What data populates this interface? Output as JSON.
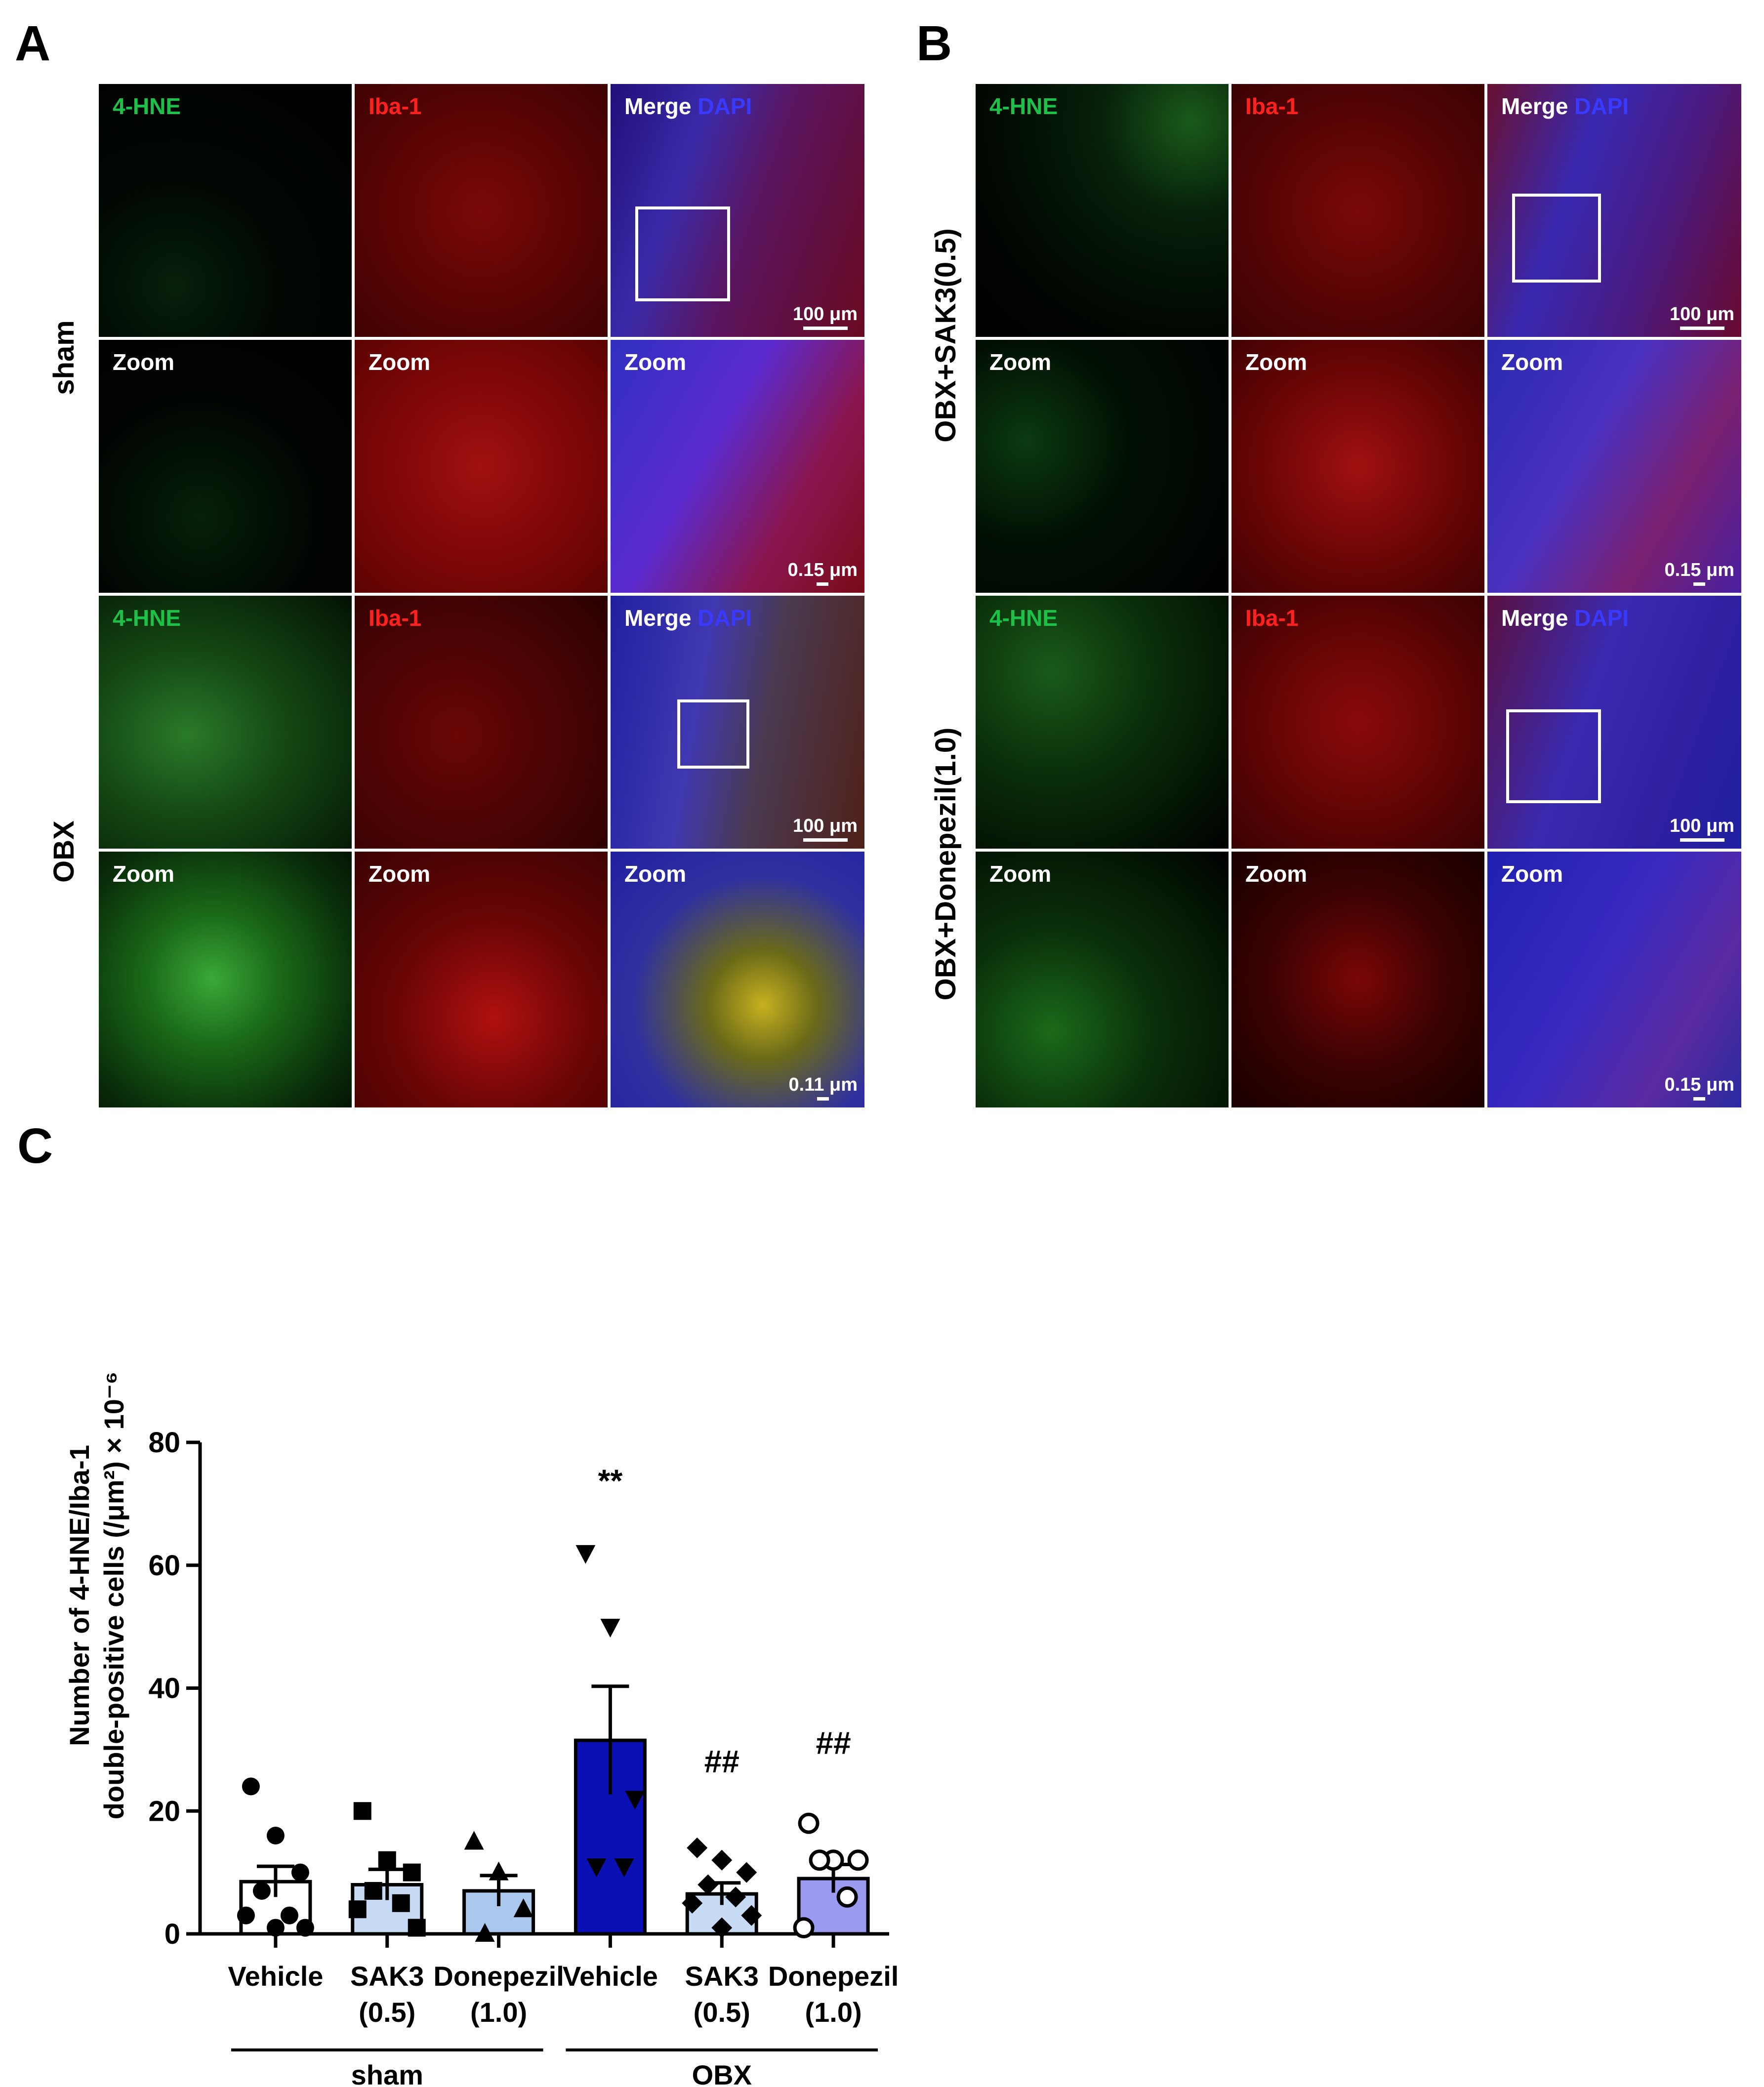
{
  "panel_labels": {
    "a": "A",
    "b": "B",
    "c": "C"
  },
  "group_labels": {
    "sham": "sham",
    "obx": "OBX",
    "obx_sak3": "OBX+SAK3(0.5)",
    "obx_donepezil": "OBX+Donepezil(1.0)"
  },
  "channel_labels": {
    "hne": "4-HNE",
    "iba": "Iba-1",
    "merge": "Merge",
    "dapi": "DAPI",
    "zoom": "Zoom"
  },
  "scale_bars": {
    "overview": "100 μm",
    "zoom_015": "0.15 μm",
    "zoom_011": "0.11 μm"
  },
  "colors": {
    "hne": "#1dc14a",
    "iba": "#ff2020",
    "dapi": "#3a3aff",
    "bar_obx_vehicle": "#0a10b4",
    "bar_sak3": "#c7dbf5",
    "bar_donepezil": "#aac8ee",
    "bar_obx_donepezil": "#9a9af0"
  },
  "chart_data": {
    "type": "bar",
    "ylabel_line1": "Number of 4-HNE/Iba-1",
    "ylabel_line2": "double-positive cells (/μm²) × 10⁻⁶",
    "ylim": [
      0,
      80
    ],
    "yticks": [
      "0",
      "20",
      "40",
      "60",
      "80"
    ],
    "categories": [
      {
        "line1": "Vehicle",
        "line2": "",
        "group": "sham"
      },
      {
        "line1": "SAK3",
        "line2": "(0.5)",
        "group": "sham"
      },
      {
        "line1": "Donepezil",
        "line2": "(1.0)",
        "group": "sham"
      },
      {
        "line1": "Vehicle",
        "line2": "",
        "group": "OBX"
      },
      {
        "line1": "SAK3",
        "line2": "(0.5)",
        "group": "OBX"
      },
      {
        "line1": "Donepezil",
        "line2": "(1.0)",
        "group": "OBX"
      }
    ],
    "groups": [
      "sham",
      "OBX"
    ],
    "values": [
      8.5,
      8.0,
      7.0,
      31.5,
      6.5,
      9.0
    ],
    "sem": [
      2.5,
      2.5,
      2.5,
      8.8,
      1.8,
      2.3
    ],
    "annotations": [
      "",
      "",
      "",
      "**",
      "##",
      "##"
    ],
    "points": [
      [
        24,
        16,
        10,
        7,
        3,
        3,
        1,
        1
      ],
      [
        20,
        12,
        10,
        7,
        5,
        4,
        1
      ],
      [
        15,
        10,
        4,
        0
      ],
      [
        62,
        50,
        22,
        11,
        11
      ],
      [
        14,
        12,
        10,
        8,
        6,
        5,
        3,
        1
      ],
      [
        18,
        12,
        12,
        12,
        6,
        1
      ]
    ],
    "markers": [
      "circle",
      "square",
      "triangle-up",
      "triangle-down",
      "diamond",
      "circle-open"
    ]
  }
}
